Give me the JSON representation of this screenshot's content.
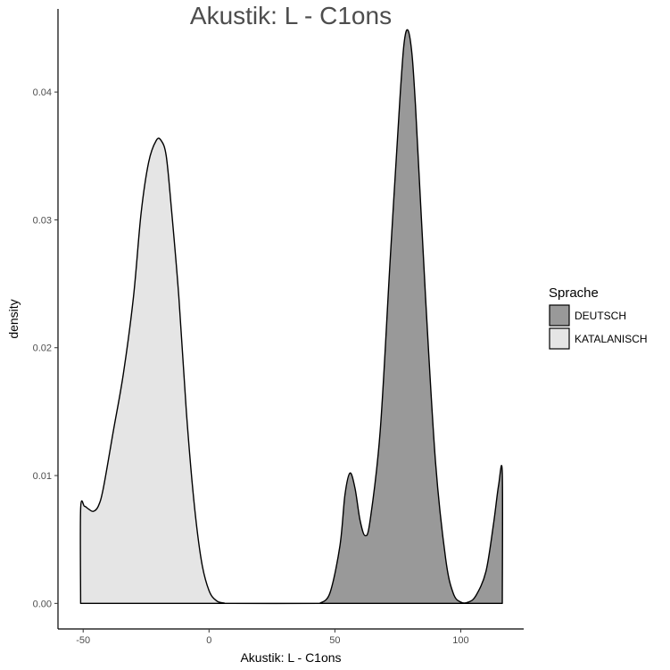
{
  "chart_data": {
    "type": "area",
    "title": "Akustik: L - C1ons",
    "xlabel": "Akustik: L - C1ons",
    "ylabel": "density",
    "xlim": [
      -60,
      125
    ],
    "ylim": [
      -0.002,
      0.0465
    ],
    "x_ticks": [
      -50,
      0,
      50,
      100
    ],
    "x_tick_labels": [
      "-50",
      "0",
      "50",
      "100"
    ],
    "y_ticks": [
      0.0,
      0.01,
      0.02,
      0.03,
      0.04
    ],
    "y_tick_labels": [
      "0.00",
      "0.01",
      "0.02",
      "0.03",
      "0.04"
    ],
    "grid": false,
    "legend": {
      "title": "Sprache",
      "position": "right"
    },
    "series": [
      {
        "name": "DEUTSCH",
        "color": "#999999",
        "points": [
          [
            44,
            0
          ],
          [
            48,
            0.0008
          ],
          [
            52,
            0.0045
          ],
          [
            54,
            0.0085
          ],
          [
            56,
            0.0102
          ],
          [
            58,
            0.009
          ],
          [
            60,
            0.0065
          ],
          [
            62,
            0.0053
          ],
          [
            64,
            0.0065
          ],
          [
            68,
            0.0135
          ],
          [
            72,
            0.027
          ],
          [
            76,
            0.04
          ],
          [
            78,
            0.0445
          ],
          [
            80,
            0.044
          ],
          [
            82,
            0.039
          ],
          [
            86,
            0.024
          ],
          [
            90,
            0.011
          ],
          [
            94,
            0.0035
          ],
          [
            97,
            0.0008
          ],
          [
            100,
            0.0001
          ],
          [
            103,
            0.0001
          ],
          [
            106,
            0.0006
          ],
          [
            110,
            0.0025
          ],
          [
            113,
            0.0062
          ],
          [
            115,
            0.0092
          ],
          [
            116.5,
            0.0102
          ],
          [
            116.5,
            0
          ]
        ]
      },
      {
        "name": "KATALANISCH",
        "color": "#e5e5e5",
        "points": [
          [
            -51,
            0
          ],
          [
            -51,
            0.0074
          ],
          [
            -49.5,
            0.0076
          ],
          [
            -48,
            0.0074
          ],
          [
            -46,
            0.0072
          ],
          [
            -44,
            0.0076
          ],
          [
            -42,
            0.009
          ],
          [
            -38,
            0.0135
          ],
          [
            -34,
            0.018
          ],
          [
            -30,
            0.024
          ],
          [
            -27,
            0.0305
          ],
          [
            -24,
            0.0345
          ],
          [
            -21,
            0.0362
          ],
          [
            -19,
            0.0362
          ],
          [
            -17,
            0.035
          ],
          [
            -15,
            0.031
          ],
          [
            -12,
            0.024
          ],
          [
            -9,
            0.015
          ],
          [
            -6,
            0.008
          ],
          [
            -3,
            0.0033
          ],
          [
            0,
            0.001
          ],
          [
            3,
            0.0002
          ],
          [
            6,
            3e-05
          ],
          [
            9,
            0
          ],
          [
            44,
            0
          ]
        ]
      }
    ]
  }
}
